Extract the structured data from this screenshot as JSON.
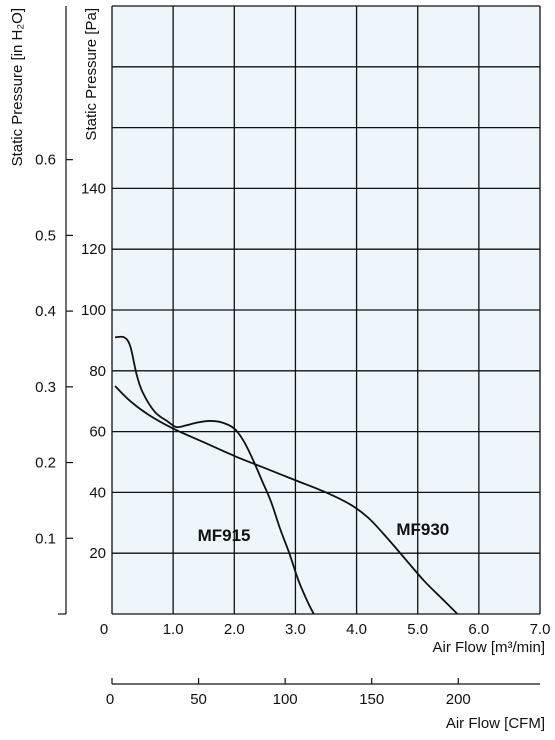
{
  "chart_data": {
    "type": "line",
    "x_label": "Air Flow [m³/min]",
    "x2_label": "Air Flow [CFM]",
    "y_label": "Static Pressure [Pa]",
    "y2_label": "Static Pressure [in H₂O]",
    "xlim": [
      0,
      7
    ],
    "ylim": [
      0,
      200
    ],
    "x_ticks": [
      "0",
      "1.0",
      "2.0",
      "3.0",
      "4.0",
      "5.0",
      "6.0",
      "7.0"
    ],
    "y_ticks": [
      {
        "value": 20,
        "label": "20"
      },
      {
        "value": 40,
        "label": "40"
      },
      {
        "value": 60,
        "label": "60"
      },
      {
        "value": 80,
        "label": "80"
      },
      {
        "value": 100,
        "label": "100"
      },
      {
        "value": 120,
        "label": "120"
      },
      {
        "value": 140,
        "label": "140"
      }
    ],
    "x2_ticks": [
      {
        "value": 0,
        "label": "0"
      },
      {
        "value": 50,
        "label": "50"
      },
      {
        "value": 100,
        "label": "100"
      },
      {
        "value": 150,
        "label": "150"
      },
      {
        "value": 200,
        "label": "200"
      }
    ],
    "y2_ticks": [
      {
        "value": 0.1,
        "label": "0.1"
      },
      {
        "value": 0.2,
        "label": "0.2"
      },
      {
        "value": 0.3,
        "label": "0.3"
      },
      {
        "value": 0.4,
        "label": "0.4"
      },
      {
        "value": 0.5,
        "label": "0.5"
      },
      {
        "value": 0.6,
        "label": "0.6"
      }
    ],
    "grid": true,
    "colors": {
      "plot_background": "#eef6fc",
      "line": "#111111",
      "grid": "#111111"
    },
    "series": [
      {
        "name": "MF915",
        "label_at": [
          1.4,
          26
        ],
        "points": [
          [
            0.05,
            91
          ],
          [
            0.2,
            91
          ],
          [
            0.3,
            88
          ],
          [
            0.4,
            79
          ],
          [
            0.5,
            73
          ],
          [
            0.7,
            66.5
          ],
          [
            0.9,
            63.5
          ],
          [
            1.05,
            61.5
          ],
          [
            1.2,
            62
          ],
          [
            1.4,
            63
          ],
          [
            1.6,
            63.5
          ],
          [
            1.8,
            63
          ],
          [
            2.0,
            61
          ],
          [
            2.15,
            57
          ],
          [
            2.3,
            51
          ],
          [
            2.45,
            44
          ],
          [
            2.6,
            37
          ],
          [
            2.75,
            28
          ],
          [
            2.9,
            20
          ],
          [
            3.05,
            11
          ],
          [
            3.2,
            4
          ],
          [
            3.3,
            0
          ]
        ]
      },
      {
        "name": "MF930",
        "label_at": [
          4.65,
          28
        ],
        "points": [
          [
            0.05,
            75
          ],
          [
            0.3,
            70
          ],
          [
            0.6,
            65.5
          ],
          [
            1.0,
            61
          ],
          [
            1.5,
            56.5
          ],
          [
            2.0,
            52
          ],
          [
            2.5,
            48
          ],
          [
            3.0,
            44
          ],
          [
            3.5,
            40
          ],
          [
            3.9,
            36
          ],
          [
            4.2,
            31.5
          ],
          [
            4.5,
            25
          ],
          [
            4.8,
            18
          ],
          [
            5.1,
            11
          ],
          [
            5.4,
            5
          ],
          [
            5.65,
            0
          ]
        ]
      }
    ]
  }
}
